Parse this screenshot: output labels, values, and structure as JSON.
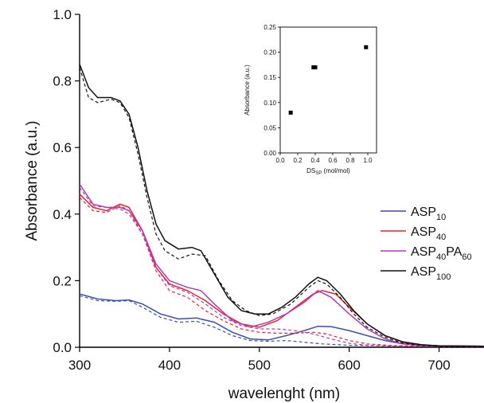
{
  "chart_data": [
    {
      "type": "line",
      "xlabel": "wavelenght (nm)",
      "ylabel": "Absorbance (a.u.)",
      "xlim": [
        300,
        750
      ],
      "ylim": [
        0.0,
        1.0
      ],
      "x_ticks": [
        "300",
        "400",
        "500",
        "600",
        "700"
      ],
      "y_ticks": [
        "0.0",
        "0.2",
        "0.4",
        "0.6",
        "0.8",
        "1.0"
      ],
      "legend_position": "right",
      "series": [
        {
          "name": "ASP10",
          "name_base": "ASP",
          "name_sub": "10",
          "color": "#3a4fb0",
          "solid": [
            [
              300,
              0.16
            ],
            [
              320,
              0.145
            ],
            [
              340,
              0.14
            ],
            [
              355,
              0.142
            ],
            [
              370,
              0.13
            ],
            [
              390,
              0.1
            ],
            [
              410,
              0.085
            ],
            [
              430,
              0.088
            ],
            [
              450,
              0.075
            ],
            [
              470,
              0.045
            ],
            [
              490,
              0.025
            ],
            [
              510,
              0.022
            ],
            [
              530,
              0.035
            ],
            [
              550,
              0.05
            ],
            [
              565,
              0.063
            ],
            [
              580,
              0.062
            ],
            [
              600,
              0.05
            ],
            [
              620,
              0.035
            ],
            [
              640,
              0.02
            ],
            [
              660,
              0.01
            ],
            [
              680,
              0.006
            ],
            [
              700,
              0.004
            ],
            [
              750,
              0.003
            ]
          ],
          "dashed": [
            [
              300,
              0.155
            ],
            [
              320,
              0.14
            ],
            [
              340,
              0.138
            ],
            [
              355,
              0.14
            ],
            [
              370,
              0.12
            ],
            [
              390,
              0.09
            ],
            [
              410,
              0.075
            ],
            [
              430,
              0.078
            ],
            [
              450,
              0.06
            ],
            [
              470,
              0.035
            ],
            [
              490,
              0.02
            ],
            [
              510,
              0.018
            ],
            [
              530,
              0.02
            ],
            [
              550,
              0.015
            ],
            [
              570,
              0.01
            ],
            [
              600,
              0.006
            ],
            [
              650,
              0.004
            ],
            [
              700,
              0.003
            ],
            [
              750,
              0.002
            ]
          ]
        },
        {
          "name": "ASP40",
          "name_base": "ASP",
          "name_sub": "40",
          "color": "#e8242a",
          "solid": [
            [
              300,
              0.46
            ],
            [
              315,
              0.42
            ],
            [
              330,
              0.41
            ],
            [
              345,
              0.43
            ],
            [
              355,
              0.42
            ],
            [
              370,
              0.35
            ],
            [
              385,
              0.24
            ],
            [
              400,
              0.19
            ],
            [
              420,
              0.17
            ],
            [
              440,
              0.14
            ],
            [
              460,
              0.1
            ],
            [
              480,
              0.07
            ],
            [
              500,
              0.06
            ],
            [
              520,
              0.08
            ],
            [
              540,
              0.12
            ],
            [
              560,
              0.16
            ],
            [
              570,
              0.17
            ],
            [
              585,
              0.16
            ],
            [
              600,
              0.12
            ],
            [
              620,
              0.07
            ],
            [
              640,
              0.035
            ],
            [
              660,
              0.015
            ],
            [
              680,
              0.007
            ],
            [
              700,
              0.004
            ],
            [
              750,
              0.003
            ]
          ],
          "dashed": [
            [
              300,
              0.45
            ],
            [
              315,
              0.41
            ],
            [
              330,
              0.405
            ],
            [
              345,
              0.425
            ],
            [
              355,
              0.41
            ],
            [
              370,
              0.34
            ],
            [
              385,
              0.23
            ],
            [
              400,
              0.17
            ],
            [
              420,
              0.15
            ],
            [
              440,
              0.11
            ],
            [
              460,
              0.08
            ],
            [
              480,
              0.055
            ],
            [
              500,
              0.045
            ],
            [
              520,
              0.042
            ],
            [
              540,
              0.042
            ],
            [
              560,
              0.045
            ],
            [
              575,
              0.04
            ],
            [
              600,
              0.02
            ],
            [
              620,
              0.01
            ],
            [
              650,
              0.005
            ],
            [
              700,
              0.003
            ],
            [
              750,
              0.002
            ]
          ]
        },
        {
          "name": "ASP40PA60",
          "name_base": "ASP",
          "name_sub": "40",
          "name_mid": "PA",
          "name_sub2": "60",
          "color": "#b33ab8",
          "solid": [
            [
              300,
              0.49
            ],
            [
              315,
              0.43
            ],
            [
              330,
              0.42
            ],
            [
              345,
              0.42
            ],
            [
              355,
              0.41
            ],
            [
              370,
              0.35
            ],
            [
              385,
              0.25
            ],
            [
              400,
              0.2
            ],
            [
              420,
              0.18
            ],
            [
              435,
              0.17
            ],
            [
              450,
              0.13
            ],
            [
              470,
              0.08
            ],
            [
              490,
              0.06
            ],
            [
              510,
              0.075
            ],
            [
              530,
              0.1
            ],
            [
              550,
              0.135
            ],
            [
              565,
              0.17
            ],
            [
              580,
              0.15
            ],
            [
              600,
              0.1
            ],
            [
              620,
              0.055
            ],
            [
              640,
              0.025
            ],
            [
              660,
              0.01
            ],
            [
              680,
              0.006
            ],
            [
              700,
              0.004
            ],
            [
              750,
              0.003
            ]
          ],
          "dashed": [
            [
              300,
              0.48
            ],
            [
              315,
              0.425
            ],
            [
              330,
              0.42
            ],
            [
              345,
              0.415
            ],
            [
              355,
              0.4
            ],
            [
              370,
              0.34
            ],
            [
              385,
              0.24
            ],
            [
              400,
              0.185
            ],
            [
              420,
              0.165
            ],
            [
              440,
              0.13
            ],
            [
              460,
              0.09
            ],
            [
              480,
              0.065
            ],
            [
              500,
              0.055
            ],
            [
              520,
              0.055
            ],
            [
              540,
              0.05
            ],
            [
              560,
              0.04
            ],
            [
              580,
              0.025
            ],
            [
              600,
              0.012
            ],
            [
              620,
              0.006
            ],
            [
              650,
              0.003
            ],
            [
              750,
              0.002
            ]
          ]
        },
        {
          "name": "ASP100",
          "name_base": "ASP",
          "name_sub": "100",
          "color": "#111111",
          "solid": [
            [
              300,
              0.85
            ],
            [
              310,
              0.78
            ],
            [
              320,
              0.75
            ],
            [
              335,
              0.75
            ],
            [
              345,
              0.74
            ],
            [
              355,
              0.7
            ],
            [
              365,
              0.6
            ],
            [
              375,
              0.47
            ],
            [
              385,
              0.37
            ],
            [
              395,
              0.32
            ],
            [
              410,
              0.295
            ],
            [
              425,
              0.3
            ],
            [
              435,
              0.29
            ],
            [
              450,
              0.22
            ],
            [
              465,
              0.15
            ],
            [
              480,
              0.11
            ],
            [
              495,
              0.1
            ],
            [
              510,
              0.1
            ],
            [
              525,
              0.12
            ],
            [
              540,
              0.15
            ],
            [
              555,
              0.19
            ],
            [
              565,
              0.21
            ],
            [
              575,
              0.2
            ],
            [
              590,
              0.16
            ],
            [
              605,
              0.11
            ],
            [
              620,
              0.07
            ],
            [
              640,
              0.035
            ],
            [
              660,
              0.016
            ],
            [
              680,
              0.008
            ],
            [
              700,
              0.004
            ],
            [
              750,
              0.003
            ]
          ],
          "dashed": [
            [
              300,
              0.84
            ],
            [
              310,
              0.75
            ],
            [
              320,
              0.735
            ],
            [
              335,
              0.745
            ],
            [
              345,
              0.735
            ],
            [
              355,
              0.69
            ],
            [
              365,
              0.58
            ],
            [
              375,
              0.45
            ],
            [
              385,
              0.34
            ],
            [
              395,
              0.29
            ],
            [
              410,
              0.265
            ],
            [
              425,
              0.28
            ],
            [
              440,
              0.275
            ],
            [
              455,
              0.2
            ],
            [
              470,
              0.14
            ],
            [
              485,
              0.11
            ],
            [
              500,
              0.095
            ],
            [
              515,
              0.1
            ],
            [
              535,
              0.13
            ],
            [
              555,
              0.18
            ],
            [
              565,
              0.2
            ],
            [
              575,
              0.19
            ],
            [
              590,
              0.15
            ],
            [
              605,
              0.1
            ],
            [
              620,
              0.06
            ],
            [
              640,
              0.03
            ],
            [
              660,
              0.012
            ],
            [
              680,
              0.006
            ],
            [
              700,
              0.003
            ],
            [
              750,
              0.002
            ]
          ]
        }
      ]
    },
    {
      "type": "scatter",
      "xlabel_base": "DS",
      "xlabel_sub": "SP",
      "xlabel_unit": "(mol/mol)",
      "ylabel": "Absorbance (a.u.)",
      "xlim": [
        0.0,
        1.1
      ],
      "ylim": [
        0.0,
        0.25
      ],
      "x_ticks": [
        "0.0",
        "0.2",
        "0.4",
        "0.6",
        "0.8",
        "1.0"
      ],
      "y_ticks": [
        "0.00",
        "0.05",
        "0.10",
        "0.15",
        "0.20",
        "0.25"
      ],
      "points": [
        {
          "x": 0.12,
          "y": 0.08
        },
        {
          "x": 0.38,
          "y": 0.17
        },
        {
          "x": 0.4,
          "y": 0.17
        },
        {
          "x": 0.98,
          "y": 0.21
        }
      ]
    }
  ]
}
